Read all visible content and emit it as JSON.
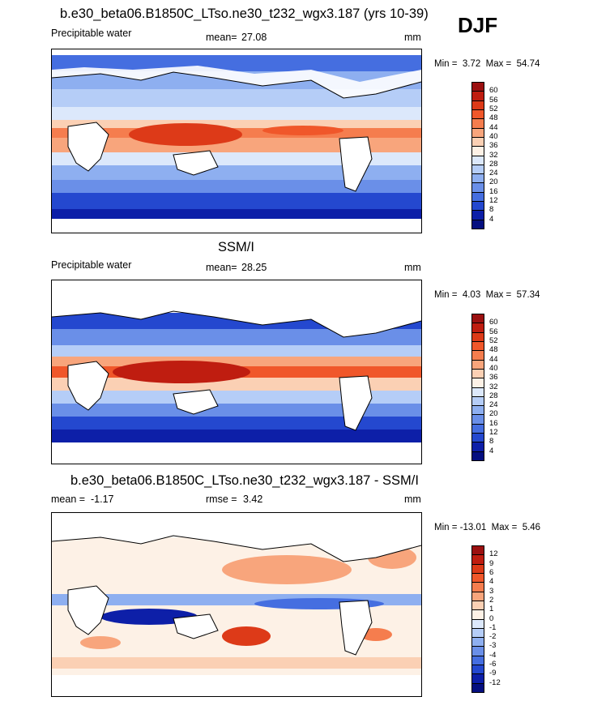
{
  "season": "DJF",
  "panels": [
    {
      "id": "model",
      "title": "b.e30_beta06.B1850C_LTso.ne30_t232_wgx3.187 (yrs 10-39)",
      "left_label": "Precipitable water",
      "mean_label": "mean=",
      "mean_value": "27.08",
      "unit": "mm",
      "min_label": "Min =",
      "min_value": "3.72",
      "max_label": "Max =",
      "max_value": "54.74",
      "colorbar_levels": [
        "60",
        "56",
        "52",
        "48",
        "44",
        "40",
        "36",
        "32",
        "28",
        "24",
        "20",
        "16",
        "12",
        "8",
        "4"
      ],
      "colorbar_colors": [
        "#9b1010",
        "#bf1d10",
        "#dd3a18",
        "#f0572a",
        "#f57d4e",
        "#f8a57c",
        "#fbd0b4",
        "#fdf1e6",
        "#dce8fb",
        "#b5cdf7",
        "#8eaff0",
        "#6a8fe8",
        "#456ee0",
        "#2448cf",
        "#0d1fa8",
        "#050f80"
      ]
    },
    {
      "id": "obs",
      "title": "SSM/I",
      "left_label": "Precipitable water",
      "mean_label": "mean=",
      "mean_value": "28.25",
      "unit": "mm",
      "min_label": "Min =",
      "min_value": "4.03",
      "max_label": "Max =",
      "max_value": "57.34",
      "colorbar_levels": [
        "60",
        "56",
        "52",
        "48",
        "44",
        "40",
        "36",
        "32",
        "28",
        "24",
        "20",
        "16",
        "12",
        "8",
        "4"
      ],
      "colorbar_colors": [
        "#9b1010",
        "#bf1d10",
        "#dd3a18",
        "#f0572a",
        "#f57d4e",
        "#f8a57c",
        "#fbd0b4",
        "#fdf1e6",
        "#dce8fb",
        "#b5cdf7",
        "#8eaff0",
        "#6a8fe8",
        "#456ee0",
        "#2448cf",
        "#0d1fa8",
        "#050f80"
      ]
    },
    {
      "id": "diff",
      "title": "b.e30_beta06.B1850C_LTso.ne30_t232_wgx3.187 - SSM/I",
      "left_label": "",
      "mean_label": "mean =",
      "mean_value": "-1.17",
      "rmse_label": "rmse =",
      "rmse_value": "3.42",
      "unit": "mm",
      "min_label": "Min =",
      "min_value": "-13.01",
      "max_label": "Max =",
      "max_value": "5.46",
      "colorbar_levels": [
        "12",
        "9",
        "6",
        "4",
        "3",
        "2",
        "1",
        "0",
        "-1",
        "-2",
        "-3",
        "-4",
        "-6",
        "-9",
        "-12"
      ],
      "colorbar_colors": [
        "#9b1010",
        "#bf1d10",
        "#dd3a18",
        "#f0572a",
        "#f57d4e",
        "#f8a57c",
        "#fbd0b4",
        "#fdf1e6",
        "#dce8fb",
        "#b5cdf7",
        "#8eaff0",
        "#6a8fe8",
        "#456ee0",
        "#2448cf",
        "#0d1fa8",
        "#050f80"
      ]
    }
  ]
}
